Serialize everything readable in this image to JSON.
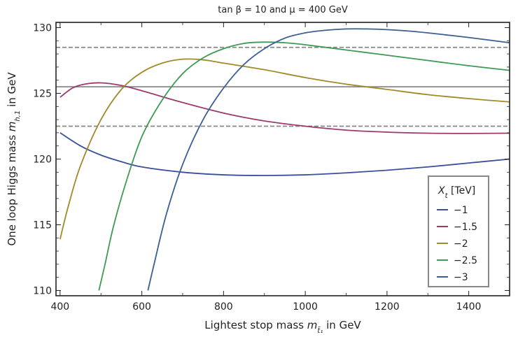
{
  "chart_data": {
    "type": "line",
    "title": "tan β = 10 and μ = 400 GeV",
    "xlabel": {
      "main": "Lightest stop mass ",
      "var": "m",
      "sub": "t̃₁",
      "unit": " in GeV"
    },
    "ylabel": {
      "main": "One loop Higgs mass ",
      "var": "m",
      "sub": "h,1",
      "unit": " in  GeV"
    },
    "xlim": [
      390,
      1500
    ],
    "ylim": [
      109.6,
      130.4
    ],
    "xticks": [
      "400",
      "600",
      "800",
      "1000",
      "1200",
      "1400"
    ],
    "xtick_values": [
      400,
      600,
      800,
      1000,
      1200,
      1400
    ],
    "yticks": [
      "110",
      "115",
      "120",
      "125",
      "130"
    ],
    "ytick_values": [
      110,
      115,
      120,
      125,
      130
    ],
    "grid": false,
    "legend": {
      "title": "X",
      "title_sub": "t",
      "title_unit": " [TeV]",
      "position": "bottom-right"
    },
    "reference_lines": [
      {
        "y": 128.5,
        "style": "dashed",
        "color": "#888888"
      },
      {
        "y": 125.5,
        "style": "solid",
        "color": "#888888"
      },
      {
        "y": 122.5,
        "style": "dashed",
        "color": "#888888"
      }
    ],
    "series": [
      {
        "name": "−1",
        "color": "#3b4f9a",
        "x": [
          400,
          450,
          500,
          550,
          600,
          700,
          800,
          900,
          1000,
          1100,
          1200,
          1300,
          1400,
          1500
        ],
        "y": [
          122.0,
          121.0,
          120.3,
          119.8,
          119.4,
          119.0,
          118.8,
          118.75,
          118.8,
          118.95,
          119.15,
          119.4,
          119.7,
          120.0
        ]
      },
      {
        "name": "−1.5",
        "color": "#9c3a6b",
        "x": [
          400,
          430,
          460,
          500,
          550,
          600,
          700,
          800,
          900,
          1000,
          1100,
          1200,
          1300,
          1400,
          1500
        ],
        "y": [
          124.7,
          125.4,
          125.7,
          125.8,
          125.6,
          125.2,
          124.3,
          123.5,
          122.9,
          122.5,
          122.2,
          122.05,
          121.97,
          121.95,
          121.97
        ]
      },
      {
        "name": "−2",
        "color": "#a08a2c",
        "x": [
          400,
          420,
          450,
          500,
          550,
          600,
          650,
          700,
          750,
          800,
          900,
          1000,
          1100,
          1200,
          1300,
          1400,
          1500
        ],
        "y": [
          113.9,
          116.4,
          119.5,
          123.0,
          125.3,
          126.6,
          127.3,
          127.6,
          127.55,
          127.3,
          126.8,
          126.2,
          125.7,
          125.3,
          124.9,
          124.6,
          124.35
        ]
      },
      {
        "name": "−2.5",
        "color": "#3e9a55",
        "x": [
          495,
          510,
          530,
          560,
          600,
          650,
          700,
          750,
          800,
          850,
          900,
          950,
          1000,
          1100,
          1200,
          1300,
          1400,
          1500
        ],
        "y": [
          110.0,
          112.0,
          114.8,
          118.1,
          121.7,
          124.5,
          126.5,
          127.7,
          128.4,
          128.8,
          128.9,
          128.85,
          128.7,
          128.3,
          127.9,
          127.5,
          127.1,
          126.75
        ]
      },
      {
        "name": "−3",
        "color": "#3b5e94",
        "x": [
          615,
          630,
          660,
          700,
          750,
          800,
          850,
          900,
          950,
          1000,
          1050,
          1100,
          1150,
          1200,
          1250,
          1300,
          1400,
          1500
        ],
        "y": [
          110.0,
          112.0,
          115.8,
          119.6,
          123.0,
          125.4,
          127.2,
          128.4,
          129.2,
          129.6,
          129.8,
          129.9,
          129.9,
          129.85,
          129.75,
          129.6,
          129.25,
          128.85
        ]
      }
    ]
  }
}
